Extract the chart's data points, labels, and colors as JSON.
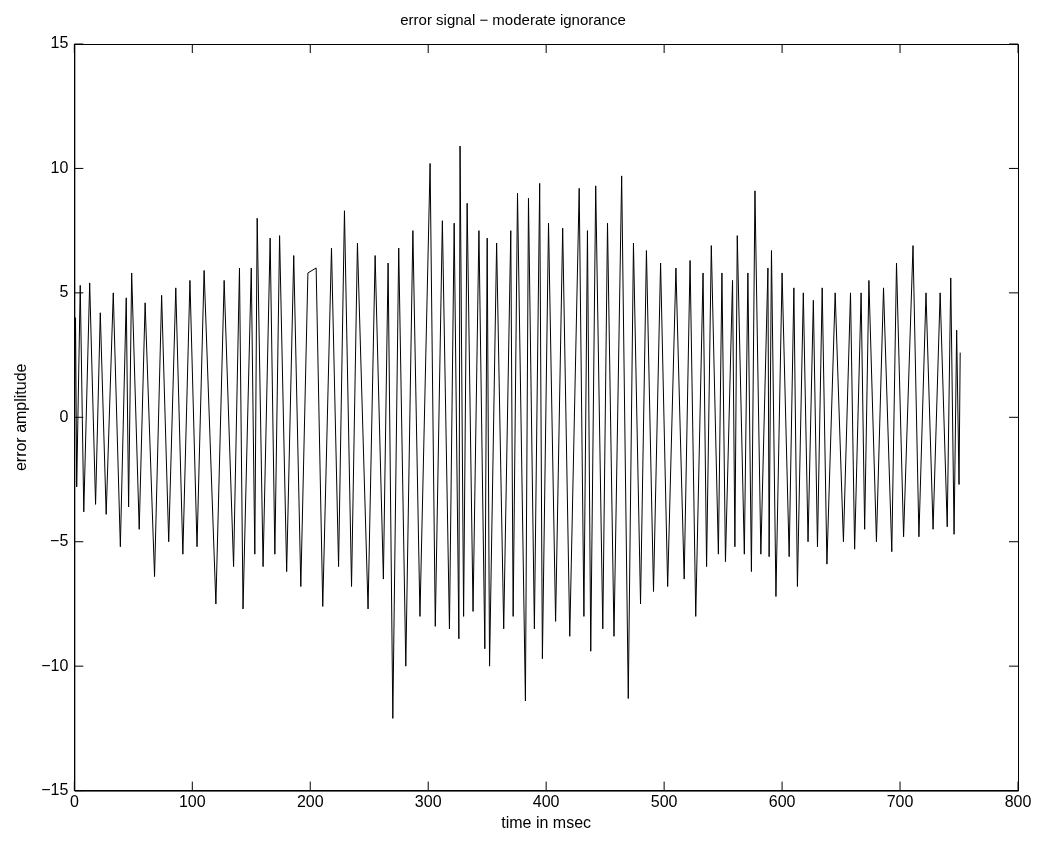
{
  "chart_data": {
    "type": "line",
    "title": "error signal − moderate ignorance",
    "xlabel": "time in msec",
    "ylabel": "error amplitude",
    "xlim": [
      0,
      800
    ],
    "xticks": [
      0,
      100,
      200,
      300,
      400,
      500,
      600,
      700,
      800
    ],
    "ylim": [
      -15,
      15
    ],
    "yticks": [
      -15,
      -10,
      -5,
      0,
      5,
      10,
      15
    ],
    "grid": false,
    "legend": false,
    "marker": "none",
    "line_style": "solid",
    "series": [
      {
        "color": "#000000",
        "x": [
          0,
          1,
          2,
          5,
          8,
          13,
          18,
          22,
          27,
          33,
          39,
          44,
          46,
          48.6,
          55,
          60,
          68,
          74,
          80,
          86,
          92,
          98,
          104,
          110,
          120,
          127,
          135,
          140,
          143,
          150,
          153,
          155,
          160,
          166,
          170,
          174,
          180,
          186,
          192,
          198,
          205,
          210.6,
          218,
          224,
          229,
          235,
          240,
          249,
          255,
          262,
          266,
          270,
          275,
          281,
          287,
          293,
          301.6,
          306,
          312,
          318,
          322,
          326,
          327,
          330,
          333,
          338,
          343,
          348,
          350,
          352,
          358,
          364,
          370,
          372,
          375.7,
          382.4,
          385,
          390,
          394.5,
          396.8,
          402,
          408,
          414,
          420,
          428,
          432,
          435,
          437.8,
          442,
          448,
          452,
          457.5,
          464,
          469.6,
          474,
          480,
          485,
          491,
          497,
          503,
          510,
          517,
          522,
          526.8,
          533,
          536,
          540,
          546,
          549,
          552,
          558,
          560,
          562,
          568,
          571,
          574,
          577,
          582,
          588,
          589,
          591,
          594.8,
          600,
          606,
          610,
          613,
          618,
          622,
          626.5,
          630,
          634,
          638,
          645,
          652,
          658,
          661.5,
          667,
          670,
          673.6,
          680,
          686,
          693,
          697,
          703,
          711,
          716,
          722,
          728,
          734,
          740,
          743,
          745.8,
          748,
          750,
          751
        ],
        "values": [
          0,
          4.0,
          -2.8,
          5.3,
          -3.8,
          5.4,
          -3.5,
          4.2,
          -3.9,
          5.0,
          -5.2,
          4.8,
          -3.6,
          5.8,
          -4.5,
          4.6,
          -6.4,
          4.9,
          -5.0,
          5.2,
          -5.5,
          5.5,
          -5.2,
          5.9,
          -7.5,
          5.5,
          -6.0,
          6.0,
          -7.7,
          6.0,
          -5.5,
          8.0,
          -6.0,
          7.2,
          -5.5,
          7.3,
          -6.2,
          6.5,
          -6.8,
          5.8,
          6.0,
          -7.6,
          6.8,
          -6.0,
          8.3,
          -6.8,
          7.0,
          -7.7,
          6.5,
          -6.5,
          6.2,
          -12.1,
          6.8,
          -10.0,
          7.5,
          -8.0,
          10.2,
          -8.4,
          7.9,
          -8.5,
          7.8,
          -8.9,
          10.9,
          -8.0,
          8.6,
          -7.8,
          7.5,
          -9.3,
          7.2,
          -10.0,
          7.0,
          -8.5,
          7.5,
          -8.0,
          9.0,
          -11.4,
          8.8,
          -8.5,
          9.4,
          -9.7,
          7.8,
          -8.2,
          7.6,
          -8.8,
          9.2,
          -8.0,
          7.5,
          -9.4,
          9.3,
          -8.5,
          7.8,
          -8.8,
          9.7,
          -11.3,
          7.0,
          -7.5,
          6.7,
          -7.0,
          6.2,
          -6.8,
          6.0,
          -6.5,
          6.3,
          -8.0,
          5.8,
          -6.0,
          6.9,
          -5.5,
          5.8,
          -5.8,
          5.5,
          -5.2,
          7.3,
          -5.5,
          5.8,
          -6.2,
          9.1,
          -5.5,
          6.0,
          -5.6,
          6.7,
          -7.2,
          5.8,
          -5.6,
          5.2,
          -6.8,
          5.0,
          -5.0,
          4.7,
          -5.2,
          5.2,
          -5.9,
          5.0,
          -5.0,
          5.0,
          -5.3,
          5.0,
          -4.5,
          5.5,
          -5.0,
          5.2,
          -5.4,
          6.2,
          -4.8,
          6.9,
          -4.8,
          5.0,
          -4.5,
          5.0,
          -4.4,
          5.6,
          -4.7,
          3.5,
          -2.7,
          2.6
        ]
      }
    ]
  }
}
